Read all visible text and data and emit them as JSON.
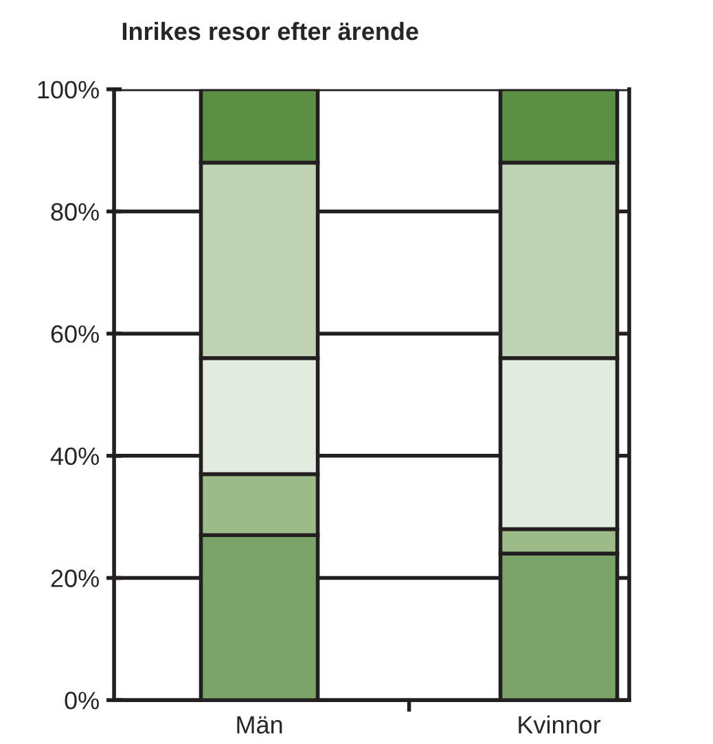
{
  "chart_data": {
    "type": "bar",
    "title": "Inrikes resor efter ärende",
    "categories": [
      "Män",
      "Kvinnor"
    ],
    "stacked": true,
    "series": [
      {
        "color": "#7aa468",
        "values": [
          27,
          24
        ]
      },
      {
        "color": "#9dbb88",
        "values": [
          10,
          4
        ]
      },
      {
        "color": "#e3ebe0",
        "values": [
          19,
          28
        ]
      },
      {
        "color": "#bfd3b4",
        "values": [
          32,
          32
        ]
      },
      {
        "color": "#5b8f43",
        "values": [
          12,
          12
        ]
      }
    ],
    "ylim": [
      0,
      100
    ],
    "yticks": [
      {
        "value": 0,
        "label": "0%"
      },
      {
        "value": 20,
        "label": "20%"
      },
      {
        "value": 40,
        "label": "40%"
      },
      {
        "value": 60,
        "label": "60%"
      },
      {
        "value": 80,
        "label": "80%"
      },
      {
        "value": 100,
        "label": "100%"
      }
    ],
    "grid": "y",
    "legend": false
  }
}
